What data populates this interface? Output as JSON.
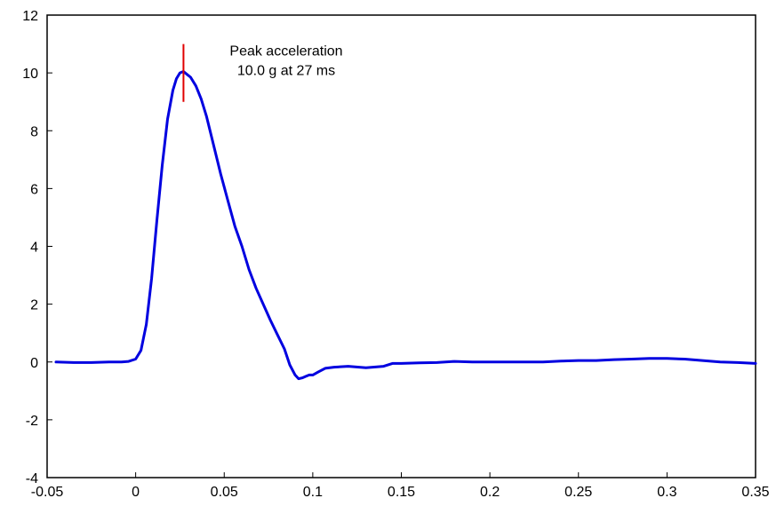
{
  "chart_data": {
    "type": "line",
    "title": "",
    "xlabel": "",
    "ylabel": "",
    "xlim": [
      -0.05,
      0.35
    ],
    "ylim": [
      -4,
      12
    ],
    "x_ticks": [
      -0.05,
      0,
      0.05,
      0.1,
      0.15,
      0.2,
      0.25,
      0.3,
      0.35
    ],
    "x_tick_labels": [
      "-0.05",
      "0",
      "0.05",
      "0.1",
      "0.15",
      "0.2",
      "0.25",
      "0.3",
      "0.35"
    ],
    "y_ticks": [
      -4,
      -2,
      0,
      2,
      4,
      6,
      8,
      10,
      12
    ],
    "y_tick_labels": [
      "-4",
      "-2",
      "0",
      "2",
      "4",
      "6",
      "8",
      "10",
      "12"
    ],
    "grid": false,
    "legend": "none",
    "series": [
      {
        "color": "#0000e0",
        "x": [
          -0.045,
          -0.035,
          -0.025,
          -0.015,
          -0.008,
          -0.004,
          0,
          0.003,
          0.006,
          0.009,
          0.012,
          0.015,
          0.018,
          0.021,
          0.023,
          0.025,
          0.027,
          0.029,
          0.031,
          0.034,
          0.037,
          0.04,
          0.044,
          0.048,
          0.052,
          0.056,
          0.06,
          0.064,
          0.068,
          0.072,
          0.076,
          0.08,
          0.084,
          0.087,
          0.09,
          0.092,
          0.094,
          0.096,
          0.098,
          0.1,
          0.103,
          0.107,
          0.112,
          0.12,
          0.13,
          0.14,
          0.145,
          0.15,
          0.16,
          0.17,
          0.18,
          0.19,
          0.2,
          0.21,
          0.22,
          0.23,
          0.24,
          0.25,
          0.26,
          0.27,
          0.28,
          0.29,
          0.3,
          0.31,
          0.32,
          0.33,
          0.34,
          0.35
        ],
        "y": [
          0.0,
          -0.02,
          -0.02,
          0.0,
          0.0,
          0.02,
          0.1,
          0.4,
          1.3,
          2.9,
          4.9,
          6.8,
          8.4,
          9.4,
          9.8,
          10.0,
          10.05,
          9.95,
          9.85,
          9.55,
          9.1,
          8.5,
          7.5,
          6.5,
          5.6,
          4.7,
          4.0,
          3.2,
          2.55,
          2.0,
          1.45,
          0.95,
          0.45,
          -0.1,
          -0.45,
          -0.58,
          -0.55,
          -0.5,
          -0.45,
          -0.45,
          -0.35,
          -0.22,
          -0.18,
          -0.15,
          -0.2,
          -0.15,
          -0.05,
          -0.05,
          -0.03,
          -0.02,
          0.02,
          0.0,
          0.0,
          0.0,
          0.0,
          0.0,
          0.03,
          0.05,
          0.05,
          0.08,
          0.1,
          0.12,
          0.12,
          0.1,
          0.05,
          0.0,
          -0.02,
          -0.05
        ]
      }
    ],
    "peak_marker": {
      "x": 0.027,
      "y_range": [
        9.0,
        11.0
      ],
      "color": "#e00000"
    },
    "annotation": {
      "lines": [
        "Peak acceleration",
        "10.0 g at 27 ms"
      ],
      "x": 0.085,
      "y": 10.6
    }
  }
}
